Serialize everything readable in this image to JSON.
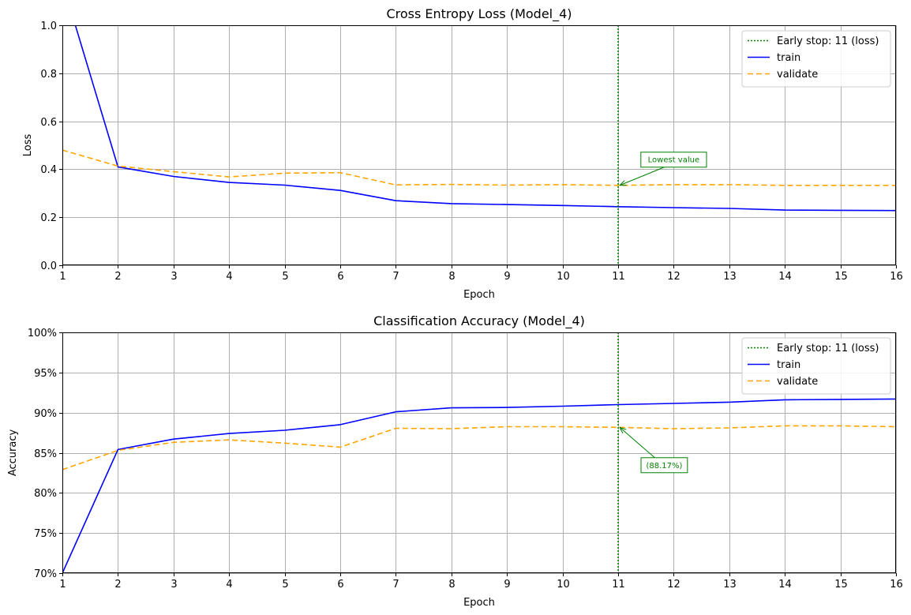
{
  "chart_data": [
    {
      "type": "line",
      "title": "Cross Entropy Loss (Model_4)",
      "xlabel": "Epoch",
      "ylabel": "Loss",
      "xlim": [
        1,
        16
      ],
      "ylim": [
        0,
        1.0
      ],
      "x_ticks": [
        1,
        2,
        3,
        4,
        5,
        6,
        7,
        8,
        9,
        10,
        11,
        12,
        13,
        14,
        15,
        16
      ],
      "x_tick_labels": [
        "1",
        "2",
        "3",
        "4",
        "5",
        "6",
        "7",
        "8",
        "9",
        "10",
        "11",
        "12",
        "13",
        "14",
        "15",
        "16"
      ],
      "y_ticks": [
        0,
        0.2,
        0.4,
        0.6,
        0.8,
        1.0
      ],
      "y_tick_labels": [
        "0.0",
        "0.2",
        "0.4",
        "0.6",
        "0.8",
        "1.0"
      ],
      "grid": true,
      "legend_position": "top-right",
      "x": [
        1,
        2,
        3,
        4,
        5,
        6,
        7,
        8,
        9,
        10,
        11,
        12,
        13,
        14,
        15,
        16
      ],
      "series": [
        {
          "name": "train",
          "style": "solid",
          "color": "#0000ff",
          "values": [
            1.18,
            0.41,
            0.37,
            0.345,
            0.334,
            0.312,
            0.269,
            0.257,
            0.253,
            0.249,
            0.244,
            0.24,
            0.237,
            0.23,
            0.229,
            0.228
          ]
        },
        {
          "name": "validate",
          "style": "dashed",
          "color": "#ffa500",
          "values": [
            0.48,
            0.413,
            0.39,
            0.368,
            0.384,
            0.386,
            0.335,
            0.337,
            0.334,
            0.336,
            0.333,
            0.336,
            0.336,
            0.333,
            0.333,
            0.333
          ]
        }
      ],
      "vline": {
        "x": 11,
        "name": "Early stop: 11 (loss)",
        "style": "dotted",
        "color": "#008000"
      },
      "annotation": {
        "text": "Lowest value",
        "x": 11,
        "y": 0.333,
        "text_x": 12.0,
        "text_y": 0.44,
        "color": "#008000"
      }
    },
    {
      "type": "line",
      "title": "Classification Accuracy (Model_4)",
      "xlabel": "Epoch",
      "ylabel": "Accuracy",
      "xlim": [
        1,
        16
      ],
      "ylim": [
        0.7,
        1.0
      ],
      "x_ticks": [
        1,
        2,
        3,
        4,
        5,
        6,
        7,
        8,
        9,
        10,
        11,
        12,
        13,
        14,
        15,
        16
      ],
      "x_tick_labels": [
        "1",
        "2",
        "3",
        "4",
        "5",
        "6",
        "7",
        "8",
        "9",
        "10",
        "11",
        "12",
        "13",
        "14",
        "15",
        "16"
      ],
      "y_ticks": [
        0.7,
        0.75,
        0.8,
        0.85,
        0.9,
        0.95,
        1.0
      ],
      "y_tick_labels": [
        "70%",
        "75%",
        "80%",
        "85%",
        "90%",
        "95%",
        "100%"
      ],
      "grid": true,
      "legend_position": "top-right",
      "x": [
        1,
        2,
        3,
        4,
        5,
        6,
        7,
        8,
        9,
        10,
        11,
        12,
        13,
        14,
        15,
        16
      ],
      "series": [
        {
          "name": "train",
          "style": "solid",
          "color": "#0000ff",
          "values": [
            0.7,
            0.854,
            0.867,
            0.874,
            0.878,
            0.885,
            0.901,
            0.906,
            0.9065,
            0.908,
            0.91,
            0.9115,
            0.913,
            0.916,
            0.9165,
            0.917
          ]
        },
        {
          "name": "validate",
          "style": "dashed",
          "color": "#ffa500",
          "values": [
            0.829,
            0.853,
            0.863,
            0.866,
            0.862,
            0.857,
            0.8805,
            0.88,
            0.8825,
            0.8825,
            0.8817,
            0.88,
            0.881,
            0.8835,
            0.8835,
            0.8825
          ]
        }
      ],
      "vline": {
        "x": 11,
        "name": "Early stop: 11 (loss)",
        "style": "dotted",
        "color": "#008000"
      },
      "annotation": {
        "text": "(88.17%)",
        "x": 11,
        "y": 0.8817,
        "text_x": 11.83,
        "text_y": 0.8345,
        "color": "#008000"
      }
    }
  ]
}
